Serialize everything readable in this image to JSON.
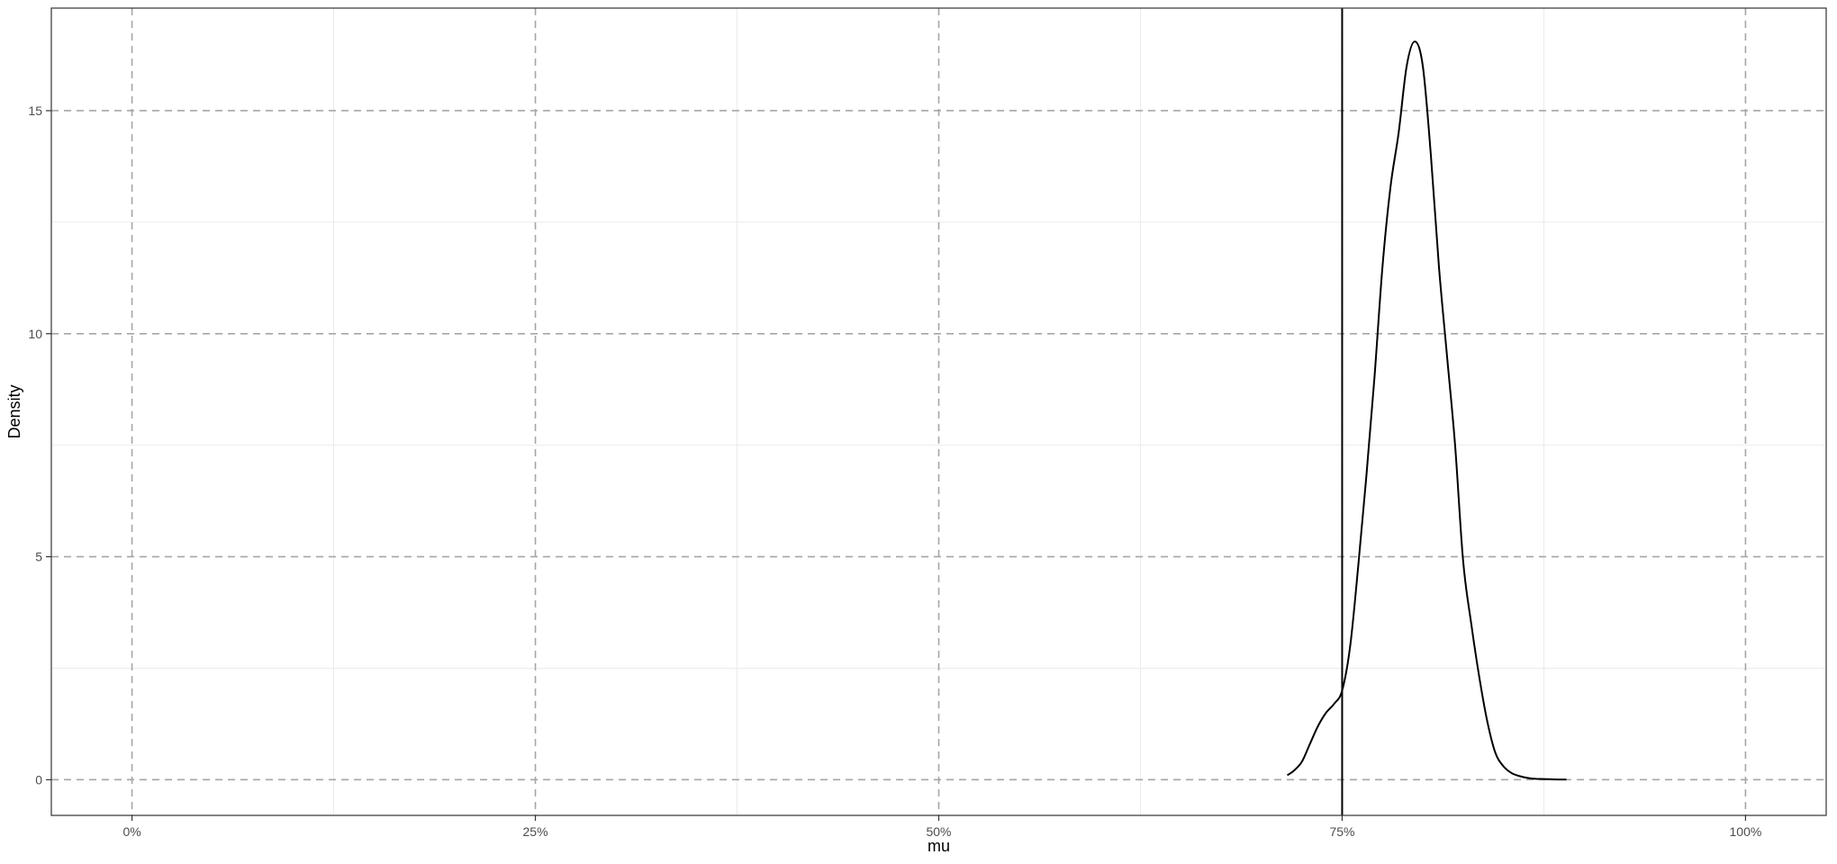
{
  "chart_data": {
    "type": "line",
    "title": "",
    "xlabel": "mu",
    "ylabel": "Density",
    "xlim": [
      -0.05,
      1.05
    ],
    "ylim": [
      -0.8,
      17.3
    ],
    "x_ticks": [
      {
        "value": 0,
        "label": "0%"
      },
      {
        "value": 0.25,
        "label": "25%"
      },
      {
        "value": 0.5,
        "label": "50%"
      },
      {
        "value": 0.75,
        "label": "75%"
      },
      {
        "value": 1,
        "label": "100%"
      }
    ],
    "y_ticks": [
      {
        "value": 0,
        "label": "0"
      },
      {
        "value": 5,
        "label": "5"
      },
      {
        "value": 10,
        "label": "10"
      },
      {
        "value": 15,
        "label": "15"
      }
    ],
    "major_grid": "dashed",
    "minor_grid": true,
    "reference_line": {
      "x": 0.75
    },
    "series": [
      {
        "x": [
          0.716,
          0.72,
          0.725,
          0.73,
          0.735,
          0.74,
          0.745,
          0.75,
          0.755,
          0.76,
          0.765,
          0.77,
          0.775,
          0.78,
          0.785,
          0.79,
          0.795,
          0.8,
          0.805,
          0.81,
          0.815,
          0.82,
          0.825,
          0.83,
          0.835,
          0.84,
          0.845,
          0.85,
          0.855,
          0.86,
          0.865,
          0.87,
          0.875,
          0.88,
          0.885,
          0.889
        ],
        "y": [
          0.1,
          0.2,
          0.4,
          0.8,
          1.2,
          1.5,
          1.7,
          2.0,
          3.0,
          4.8,
          6.8,
          9.0,
          11.5,
          13.3,
          14.5,
          16.0,
          16.55,
          16.0,
          14.0,
          11.5,
          9.5,
          7.5,
          4.9,
          3.5,
          2.3,
          1.3,
          0.6,
          0.3,
          0.15,
          0.08,
          0.04,
          0.02,
          0.015,
          0.01,
          0.005,
          0.005
        ],
        "color": "#000000"
      }
    ]
  }
}
